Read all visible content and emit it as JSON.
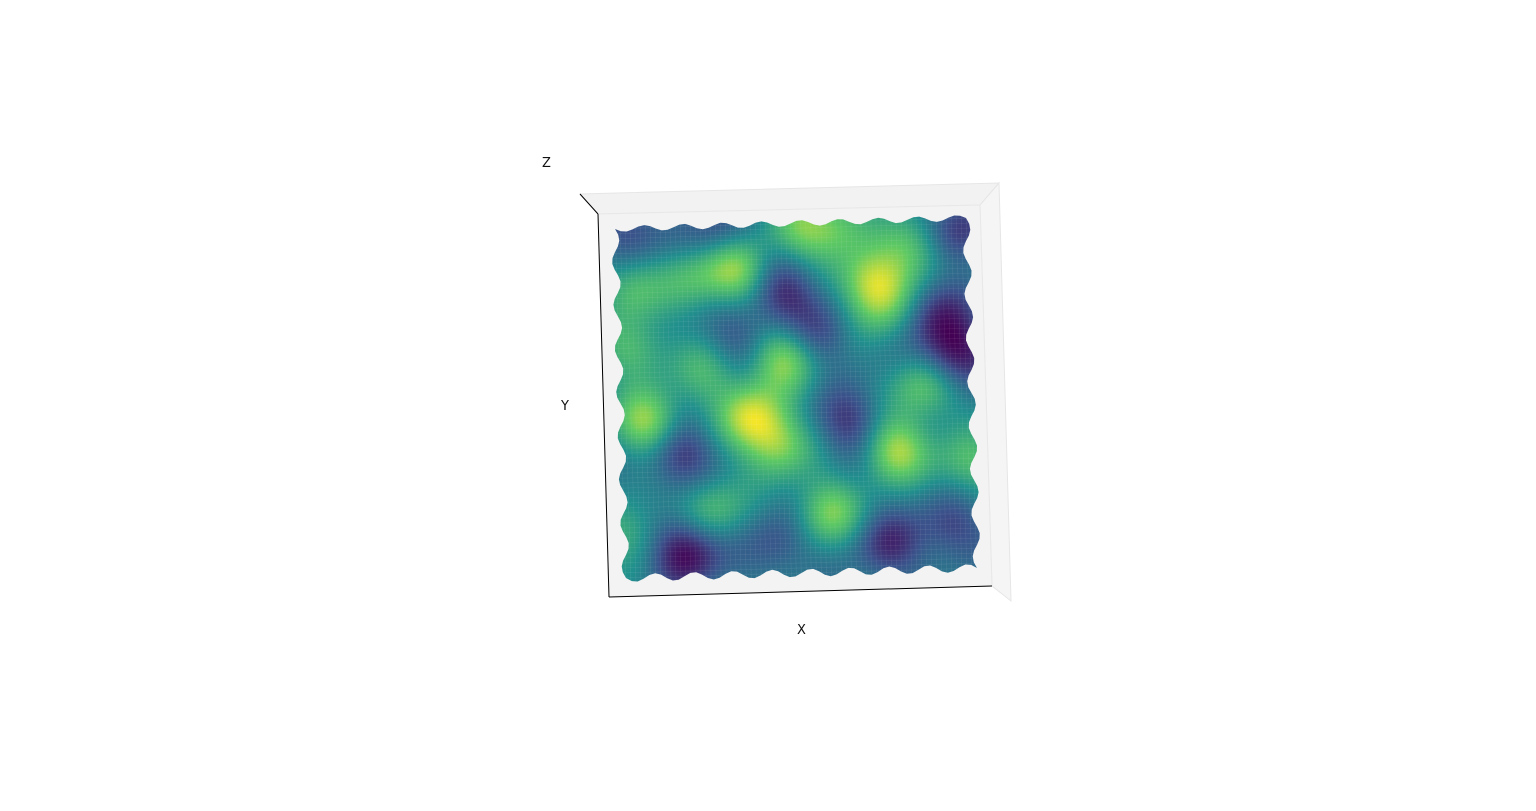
{
  "chart_data": {
    "type": "surface",
    "xlabel": "X",
    "ylabel": "Y",
    "zlabel": "Z",
    "colormap": "viridis",
    "colormap_stops": [
      "#440154",
      "#3b528b",
      "#21908d",
      "#5dc963",
      "#fde725"
    ],
    "grid": false,
    "axis_ticks": false,
    "pane_color": "#f2f2f2",
    "axis_line_color": "#000000",
    "high_regions": [
      {
        "x": 0.34,
        "y": 0.15,
        "amp": 1.0
      },
      {
        "x": 0.71,
        "y": 0.18,
        "amp": 1.0
      },
      {
        "x": 0.51,
        "y": 0.04,
        "amp": 0.7
      },
      {
        "x": 0.82,
        "y": 0.09,
        "amp": 0.6
      },
      {
        "x": 0.62,
        "y": 0.03,
        "amp": 0.6
      },
      {
        "x": 0.22,
        "y": 0.18,
        "amp": 0.5
      },
      {
        "x": 0.05,
        "y": 0.2,
        "amp": 0.6
      },
      {
        "x": 0.47,
        "y": 0.39,
        "amp": 0.9
      },
      {
        "x": 0.26,
        "y": 0.43,
        "amp": 0.5
      },
      {
        "x": 0.06,
        "y": 0.37,
        "amp": 0.6
      },
      {
        "x": 0.85,
        "y": 0.47,
        "amp": 0.7
      },
      {
        "x": 0.1,
        "y": 0.57,
        "amp": 1.0
      },
      {
        "x": 0.38,
        "y": 0.55,
        "amp": 1.0
      },
      {
        "x": 0.45,
        "y": 0.63,
        "amp": 0.8
      },
      {
        "x": 0.77,
        "y": 0.64,
        "amp": 1.0
      },
      {
        "x": 0.97,
        "y": 0.68,
        "amp": 0.6
      },
      {
        "x": 0.27,
        "y": 0.8,
        "amp": 0.6
      },
      {
        "x": 0.59,
        "y": 0.81,
        "amp": 0.8
      },
      {
        "x": 0.05,
        "y": 0.87,
        "amp": 0.5
      },
      {
        "x": 0.74,
        "y": 0.26,
        "amp": 0.5
      }
    ],
    "low_regions": [
      {
        "x": 0.2,
        "y": 0.92,
        "amp": 1.0
      },
      {
        "x": 0.93,
        "y": 0.38,
        "amp": 0.9
      },
      {
        "x": 0.88,
        "y": 0.27,
        "amp": 0.6
      },
      {
        "x": 0.05,
        "y": 0.05,
        "amp": 0.5
      },
      {
        "x": 0.46,
        "y": 0.21,
        "amp": 0.7
      },
      {
        "x": 0.56,
        "y": 0.33,
        "amp": 0.5
      },
      {
        "x": 0.18,
        "y": 0.65,
        "amp": 0.7
      },
      {
        "x": 0.65,
        "y": 0.57,
        "amp": 0.6
      },
      {
        "x": 0.95,
        "y": 0.05,
        "amp": 0.6
      },
      {
        "x": 0.34,
        "y": 0.33,
        "amp": 0.4
      },
      {
        "x": 0.75,
        "y": 0.9,
        "amp": 0.6
      },
      {
        "x": 0.92,
        "y": 0.85,
        "amp": 0.5
      },
      {
        "x": 0.45,
        "y": 0.9,
        "amp": 0.4
      },
      {
        "x": 0.3,
        "y": 0.05,
        "amp": 0.5
      }
    ]
  }
}
